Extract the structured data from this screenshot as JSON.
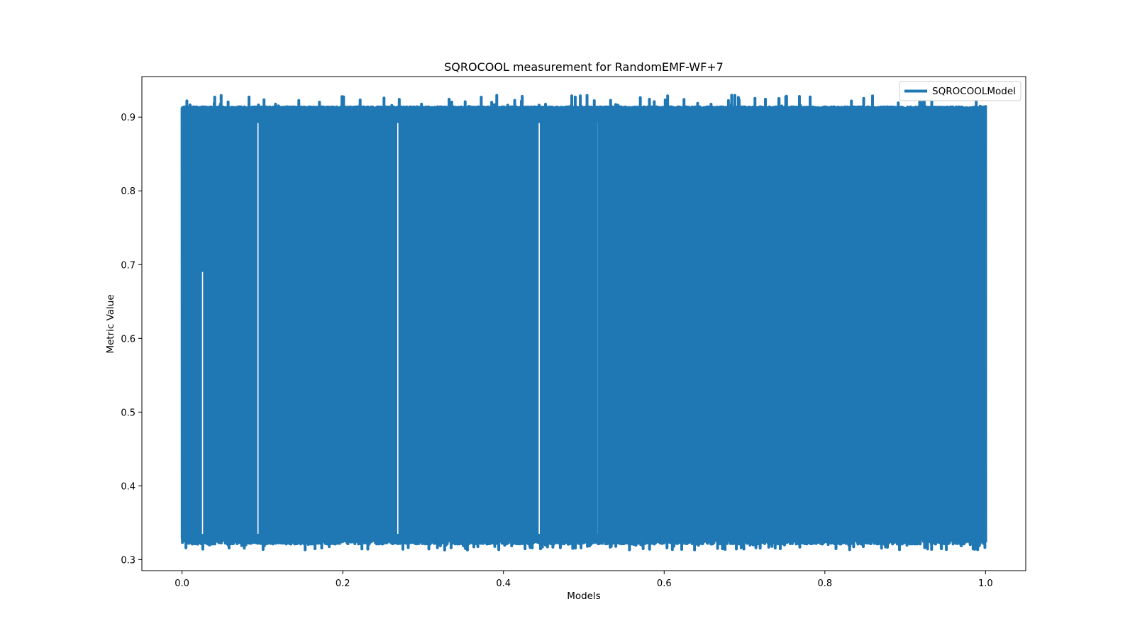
{
  "chart_data": {
    "type": "line",
    "title": "SQROCOOL measurement for RandomEMF-WF+7",
    "xlabel": "Models",
    "ylabel": "Metric Value",
    "xlim": [
      -0.05,
      1.05
    ],
    "ylim": [
      0.285,
      0.955
    ],
    "xticks": [
      0.0,
      0.2,
      0.4,
      0.6,
      0.8,
      1.0
    ],
    "xtick_labels": [
      "0.0",
      "0.2",
      "0.4",
      "0.6",
      "0.8",
      "1.0"
    ],
    "yticks": [
      0.3,
      0.4,
      0.5,
      0.6,
      0.7,
      0.8,
      0.9
    ],
    "ytick_labels": [
      "0.3",
      "0.4",
      "0.5",
      "0.6",
      "0.7",
      "0.8",
      "0.9"
    ],
    "grid": false,
    "legend_position": "top-right",
    "series": [
      {
        "name": "SQROCOOLModel",
        "color": "#1f77b4",
        "x_range": [
          0.0,
          1.0
        ],
        "typical_high": 0.912,
        "typical_low": 0.325,
        "max_value": 0.93,
        "min_value": 0.313,
        "pattern": "dense oscillation between roughly 0.32 and 0.91 across all models"
      }
    ]
  }
}
